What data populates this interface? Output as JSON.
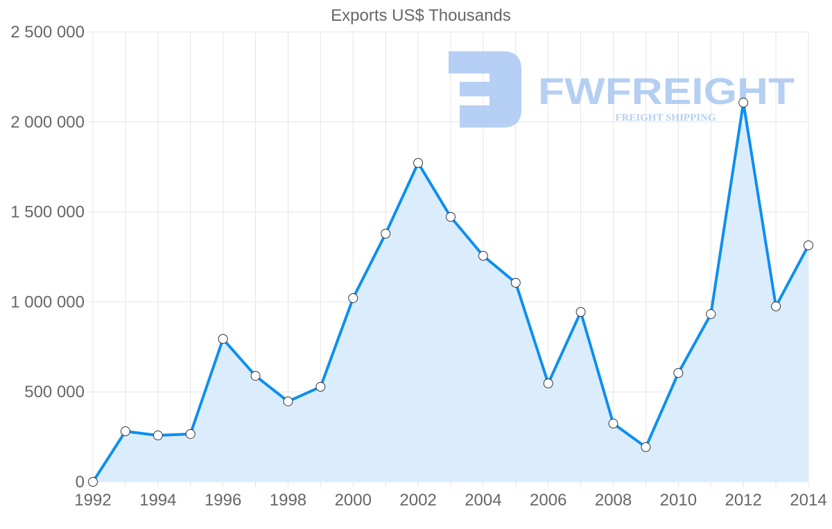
{
  "chart_data": {
    "type": "area",
    "title": "Exports US$ Thousands",
    "xlabel": "",
    "ylabel": "",
    "x": [
      1992,
      1993,
      1994,
      1995,
      1996,
      1997,
      1998,
      1999,
      2000,
      2001,
      2002,
      2003,
      2004,
      2005,
      2006,
      2007,
      2008,
      2009,
      2010,
      2011,
      2012,
      2013,
      2014
    ],
    "series": [
      {
        "name": "Exports US$ Thousands",
        "values": [
          0,
          281000,
          258000,
          266000,
          794000,
          589000,
          447000,
          528000,
          1021000,
          1379000,
          1772000,
          1472000,
          1256000,
          1106000,
          547000,
          944000,
          324000,
          193000,
          605000,
          932000,
          2107000,
          975000,
          1314000
        ],
        "color": "#0d8ff0",
        "fill": "#dbedfd"
      }
    ],
    "xlim": [
      1992,
      2014
    ],
    "ylim": [
      0,
      2500000
    ],
    "x_tick_labels": [
      "1992",
      "1994",
      "1996",
      "1998",
      "2000",
      "2002",
      "2004",
      "2006",
      "2008",
      "2010",
      "2012",
      "2014"
    ],
    "y_tick_labels": [
      "0",
      "500 000",
      "1 000 000",
      "1 500 000",
      "2 000 000",
      "2 500 000"
    ],
    "grid": true,
    "legend": "none"
  },
  "watermark": {
    "brand": "FWFREIGHT",
    "tagline": "FREIGHT SHIPPING",
    "color": "#a9c7f2"
  }
}
